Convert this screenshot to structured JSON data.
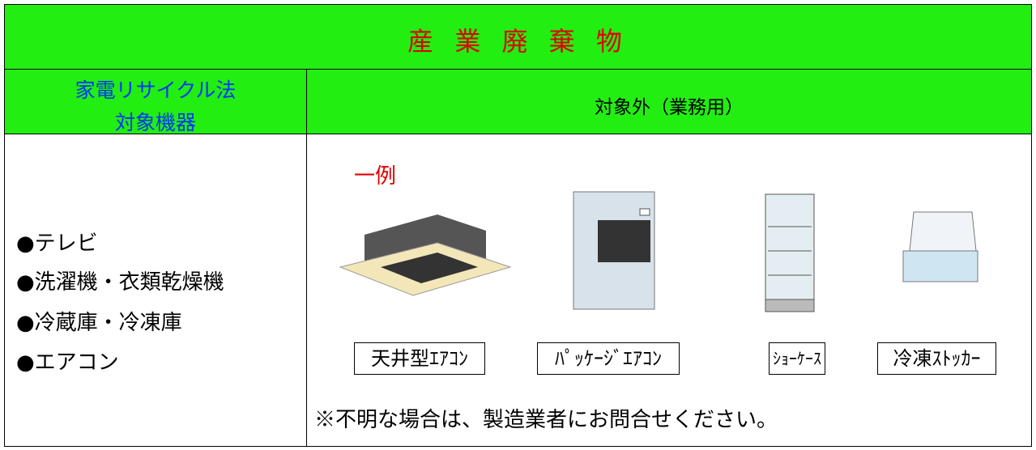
{
  "header": {
    "title": "産 業 廃 棄 物"
  },
  "table": {
    "left_header": [
      "家電リサイクル法",
      "対象機器"
    ],
    "right_header": "対象外（業務用）",
    "left_items": [
      "●テレビ",
      "●洗濯機・衣類乾燥機",
      "●冷蔵庫・冷凍庫",
      "●エアコン"
    ],
    "example_label": "一例",
    "examples": [
      "天井型ｴｱｺﾝ",
      "ﾊﾟｯｹｰｼﾞｴｱｺﾝ",
      "ｼｮｰｹｰｽ",
      "冷凍ｽﾄｯｶｰ"
    ],
    "note": "※不明な場合は、製造業者にお問合せください。"
  }
}
